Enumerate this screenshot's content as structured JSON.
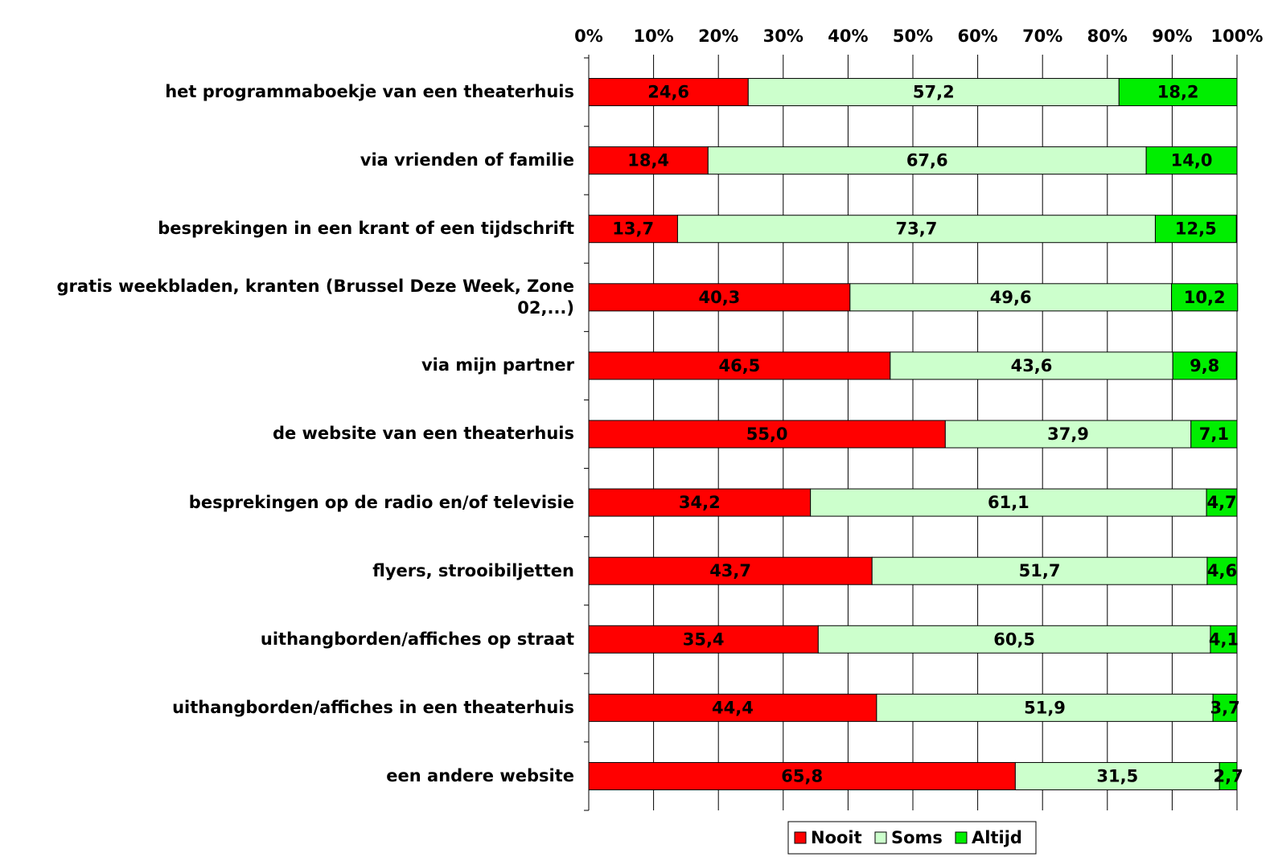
{
  "chart_data": {
    "type": "stacked_bar_horizontal",
    "categories": [
      "het programmaboekje van een theaterhuis",
      "via vrienden of familie",
      "besprekingen in een krant of een tijdschrift",
      "gratis weekbladen, kranten (Brussel Deze Week, Zone 02,...)",
      "via mijn partner",
      "de website van een theaterhuis",
      "besprekingen op de radio en/of televisie",
      "flyers, strooibiljetten",
      "uithangborden/affiches op straat",
      "uithangborden/affiches in een theaterhuis",
      "een andere website"
    ],
    "series": [
      {
        "name": "Nooit",
        "color": "#ff0000",
        "values": [
          24.6,
          18.4,
          13.7,
          40.3,
          46.5,
          55.0,
          34.2,
          43.7,
          35.4,
          44.4,
          65.8
        ],
        "value_labels": [
          "24,6",
          "18,4",
          "13,7",
          "40,3",
          "46,5",
          "55,0",
          "34,2",
          "43,7",
          "35,4",
          "44,4",
          "65,8"
        ]
      },
      {
        "name": "Soms",
        "color": "#ccffcc",
        "values": [
          57.2,
          67.6,
          73.7,
          49.6,
          43.6,
          37.9,
          61.1,
          51.7,
          60.5,
          51.9,
          31.5
        ],
        "value_labels": [
          "57,2",
          "67,6",
          "73,7",
          "49,6",
          "43,6",
          "37,9",
          "61,1",
          "51,7",
          "60,5",
          "51,9",
          "31,5"
        ]
      },
      {
        "name": "Altijd",
        "color": "#00ee00",
        "values": [
          18.2,
          14.0,
          12.5,
          10.2,
          9.8,
          7.1,
          4.7,
          4.6,
          4.1,
          3.7,
          2.7
        ],
        "value_labels": [
          "18,2",
          "14,0",
          "12,5",
          "10,2",
          "9,8",
          "7,1",
          "4,7",
          "4,6",
          "4,1",
          "3,7",
          "2,7"
        ]
      }
    ],
    "xlim": [
      0,
      100
    ],
    "xticks": [
      {
        "value": 0,
        "label": "0%"
      },
      {
        "value": 10,
        "label": "10%"
      },
      {
        "value": 20,
        "label": "20%"
      },
      {
        "value": 30,
        "label": "30%"
      },
      {
        "value": 40,
        "label": "40%"
      },
      {
        "value": 50,
        "label": "50%"
      },
      {
        "value": 60,
        "label": "60%"
      },
      {
        "value": 70,
        "label": "70%"
      },
      {
        "value": 80,
        "label": "80%"
      },
      {
        "value": 90,
        "label": "90%"
      },
      {
        "value": 100,
        "label": "100%"
      }
    ],
    "grid": true,
    "legend": "bottom"
  }
}
